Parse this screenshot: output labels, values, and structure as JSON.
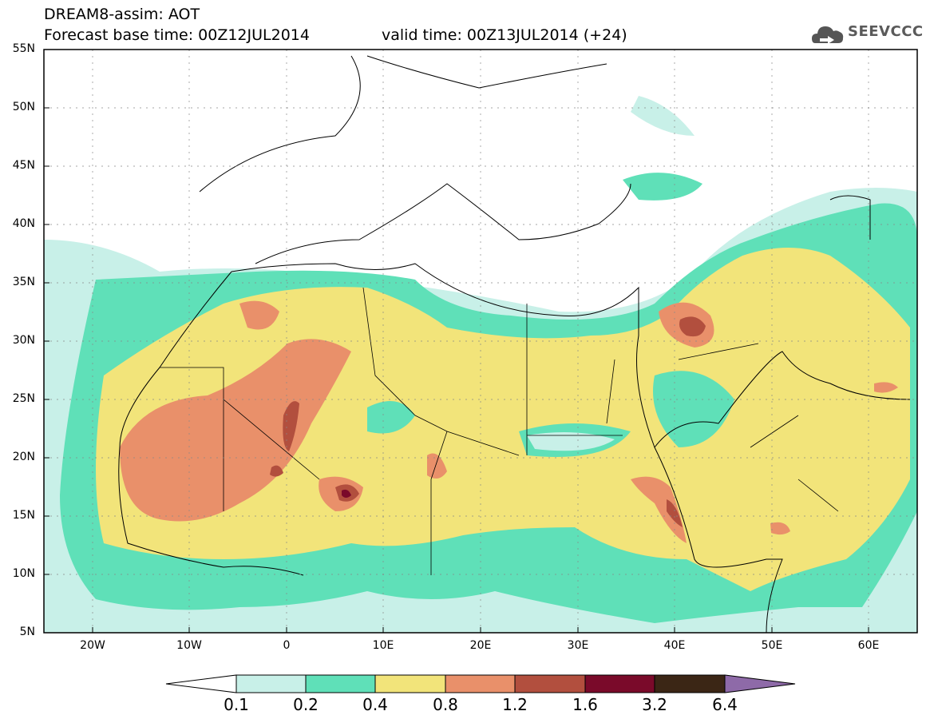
{
  "title_line1": "DREAM8-assim: AOT",
  "title_line2": "Forecast base time: 00Z12JUL2014",
  "valid_time": "valid time: 00Z13JUL2014 (+24)",
  "logo_text": "SEEVCCC",
  "map": {
    "lon_range": [
      -25,
      65
    ],
    "lat_range": [
      5,
      55
    ],
    "lat_labels": [
      "55N",
      "50N",
      "45N",
      "40N",
      "35N",
      "30N",
      "25N",
      "20N",
      "15N",
      "10N",
      "5N"
    ],
    "lon_labels": [
      "20W",
      "10W",
      "0",
      "10E",
      "20E",
      "30E",
      "40E",
      "50E",
      "60E"
    ]
  },
  "colorbar": {
    "levels": [
      "0.1",
      "0.2",
      "0.4",
      "0.8",
      "1.2",
      "1.6",
      "3.2",
      "6.4"
    ],
    "colors": [
      "#c8f0e8",
      "#5fe0b8",
      "#f2e47a",
      "#e9906a",
      "#b24f3e",
      "#7a0a2a",
      "#3b2615",
      "#8e6aa8"
    ]
  }
}
